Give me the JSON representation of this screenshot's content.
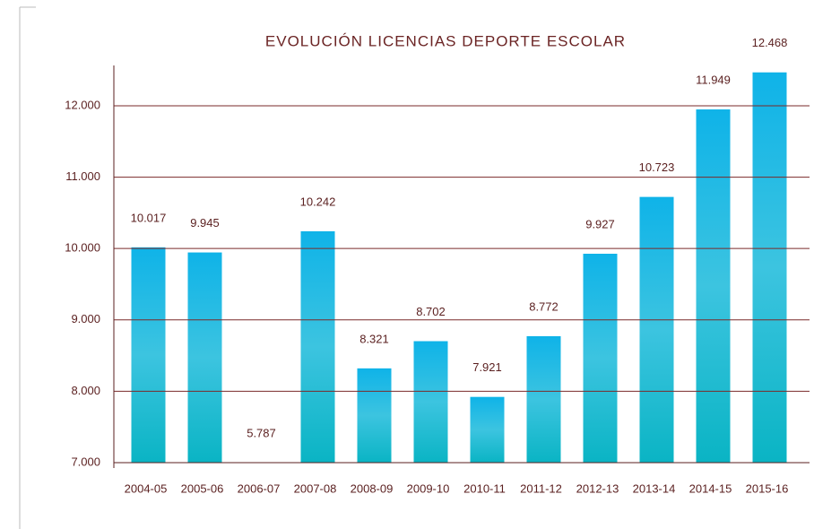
{
  "chart_data": {
    "type": "bar",
    "title": "EVOLUCIÓN LICENCIAS DEPORTE ESCOLAR",
    "categories": [
      "2004-05",
      "2005-06",
      "2006-07",
      "2007-08",
      "2008-09",
      "2009-10",
      "2010-11",
      "2011-12",
      "2012-13",
      "2013-14",
      "2014-15",
      "2015-16"
    ],
    "values": [
      10017,
      9945,
      5787,
      10242,
      8321,
      8702,
      7921,
      8772,
      9927,
      10723,
      11949,
      12468
    ],
    "value_labels": [
      "10.017",
      "9.945",
      "5.787",
      "10.242",
      "8.321",
      "8.702",
      "7.921",
      "8.772",
      "9.927",
      "10.723",
      "11.949",
      "12.468"
    ],
    "color": [
      "#0fb3e8",
      "#0ab4c4"
    ],
    "ylim": [
      7000,
      12565
    ],
    "yticks": [
      {
        "value": 7000,
        "label": "7.000"
      },
      {
        "value": 8000,
        "label": "8.000"
      },
      {
        "value": 9000,
        "label": "9.000"
      },
      {
        "value": 10000,
        "label": "10.000"
      },
      {
        "value": 11000,
        "label": "11.000"
      },
      {
        "value": 12000,
        "label": "12.000"
      }
    ],
    "grid": true
  }
}
